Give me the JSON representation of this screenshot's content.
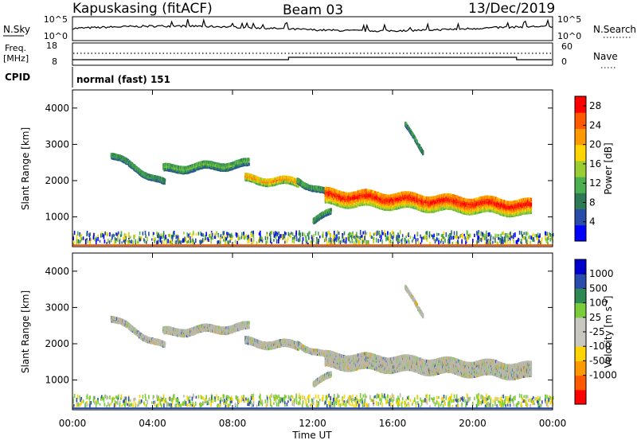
{
  "header": {
    "station": "Kapuskasing (fitACF)",
    "beam": "Beam 03",
    "date": "13/Dec/2019"
  },
  "strip_panels": {
    "nsky_label": "N.Sky",
    "nsky_ticks": [
      "10^5",
      "10^0"
    ],
    "nsearch_label": "N.Search",
    "nsearch_ticks": [
      "10^5",
      "10^0"
    ],
    "freq_label_top": "Freq.",
    "freq_label_unit": "[MHz]",
    "freq_ticks": [
      "18",
      "8"
    ],
    "nave_label": "Nave",
    "nave_ticks": [
      "60",
      "0"
    ],
    "cpid_label": "CPID",
    "cpid_text": "normal (fast) 151"
  },
  "chart_data": [
    {
      "type": "heatmap",
      "name": "Power",
      "ylabel": "Slant Range [km]",
      "xlabel": "Time UT",
      "x_ticks": [
        "00:00",
        "04:00",
        "08:00",
        "12:00",
        "16:00",
        "20:00",
        "00:00"
      ],
      "x_range_hours": [
        0,
        24
      ],
      "y_ticks": [
        "1000",
        "2000",
        "3000",
        "4000"
      ],
      "ylim": [
        180,
        4500
      ],
      "colorbar": {
        "label": "Power [dB]",
        "ticks": [
          "4",
          "8",
          "12",
          "16",
          "20",
          "24",
          "28"
        ],
        "range": [
          0,
          30
        ]
      },
      "echo_regions": [
        {
          "t_start": 1.9,
          "t_end": 4.6,
          "r_start": 2700,
          "r_end": 1900,
          "width": 130,
          "peak_db": 11
        },
        {
          "t_start": 4.5,
          "t_end": 8.8,
          "r_start": 2300,
          "r_end": 2450,
          "width": 160,
          "peak_db": 13
        },
        {
          "t_start": 8.6,
          "t_end": 11.3,
          "r_start": 2050,
          "r_end": 1950,
          "width": 200,
          "peak_db": 22
        },
        {
          "t_start": 11.2,
          "t_end": 12.6,
          "r_start": 2000,
          "r_end": 1650,
          "width": 120,
          "peak_db": 12
        },
        {
          "t_start": 12.6,
          "t_end": 22.9,
          "r_start": 1550,
          "r_end": 1250,
          "width": 420,
          "peak_db": 28
        },
        {
          "t_start": 16.6,
          "t_end": 17.5,
          "r_start": 3500,
          "r_end": 2800,
          "width": 100,
          "peak_db": 10
        },
        {
          "t_start": 12.0,
          "t_end": 12.9,
          "r_start": 900,
          "r_end": 1100,
          "width": 120,
          "peak_db": 12
        }
      ]
    },
    {
      "type": "heatmap",
      "name": "Velocity",
      "ylabel": "Slant Range [km]",
      "xlabel": "Time UT",
      "x_ticks": [
        "00:00",
        "04:00",
        "08:00",
        "12:00",
        "16:00",
        "20:00",
        "00:00"
      ],
      "x_range_hours": [
        0,
        24
      ],
      "y_ticks": [
        "1000",
        "2000",
        "3000",
        "4000"
      ],
      "ylim": [
        180,
        4500
      ],
      "colorbar": {
        "label_main": "Velocity  [m s",
        "label_sup": "-1",
        "label_end": "]",
        "ticks": [
          "1000",
          "500",
          "100",
          "25",
          "-25",
          "-100",
          "-500",
          "-1000"
        ]
      },
      "echo_regions": [
        {
          "t_start": 1.9,
          "t_end": 4.6,
          "r_start": 2700,
          "r_end": 1900,
          "width": 130
        },
        {
          "t_start": 4.5,
          "t_end": 8.8,
          "r_start": 2300,
          "r_end": 2450,
          "width": 160
        },
        {
          "t_start": 8.6,
          "t_end": 11.3,
          "r_start": 2050,
          "r_end": 1950,
          "width": 200
        },
        {
          "t_start": 11.2,
          "t_end": 12.6,
          "r_start": 2000,
          "r_end": 1650,
          "width": 120
        },
        {
          "t_start": 12.6,
          "t_end": 22.9,
          "r_start": 1550,
          "r_end": 1250,
          "width": 420
        },
        {
          "t_start": 16.6,
          "t_end": 17.5,
          "r_start": 3500,
          "r_end": 2800,
          "width": 100
        },
        {
          "t_start": 12.0,
          "t_end": 12.9,
          "r_start": 900,
          "r_end": 1100,
          "width": 120
        }
      ]
    }
  ],
  "colors": {
    "power_scale": [
      "#0000ff",
      "#2a4dab",
      "#2d7a55",
      "#4caf50",
      "#9acd32",
      "#ffd400",
      "#ff9900",
      "#ff5a00",
      "#ff0000"
    ],
    "velocity_scale": [
      "#ff0000",
      "#ff5a00",
      "#ff9900",
      "#ffd400",
      "#c8c8c0",
      "#c8c8c0",
      "#7acc3a",
      "#2d8a55",
      "#2a4dab",
      "#0000cc"
    ],
    "ground_scatter": "#b8b8b0"
  }
}
